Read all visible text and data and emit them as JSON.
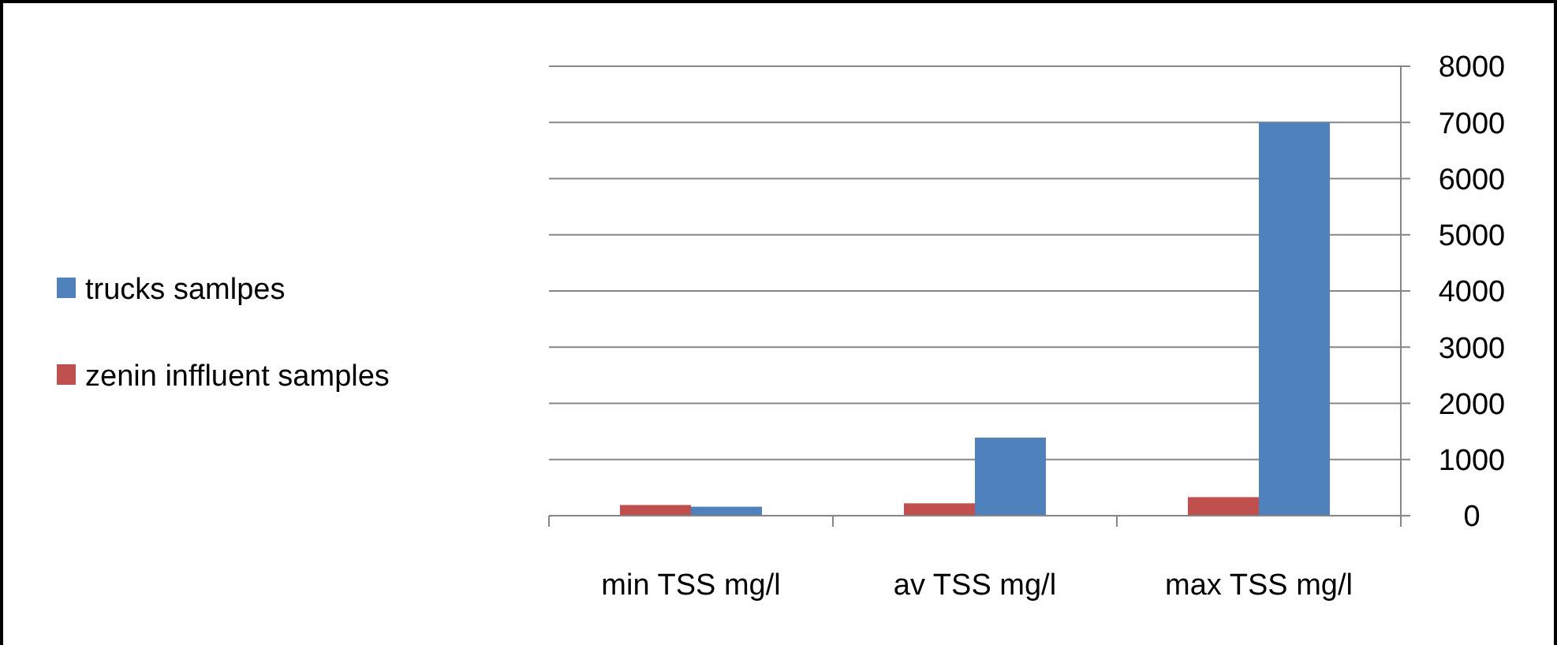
{
  "chart_data": {
    "type": "bar",
    "categories": [
      "min TSS mg/l",
      "av TSS mg/l",
      "max TSS mg/l"
    ],
    "series": [
      {
        "name": "zenin inffluent samples",
        "color": "#c0504d",
        "values": [
          190,
          220,
          330
        ]
      },
      {
        "name": "trucks samlpes",
        "color": "#4f81bd",
        "values": [
          160,
          1390,
          7000
        ]
      }
    ],
    "ylim": [
      0,
      8000
    ],
    "yticks": [
      0,
      1000,
      2000,
      3000,
      4000,
      5000,
      6000,
      7000,
      8000
    ],
    "grid": "y",
    "legend": "left"
  }
}
